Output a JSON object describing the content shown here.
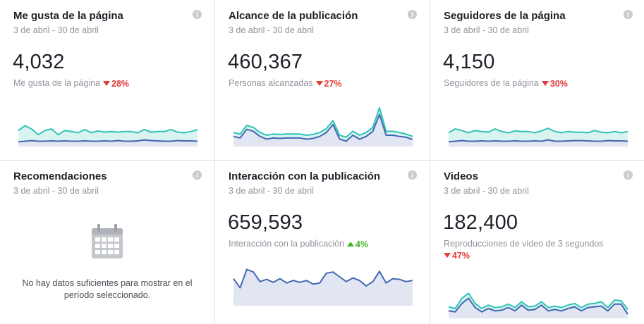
{
  "cards": [
    {
      "title": "Me gusta de la página",
      "range": "3 de abril - 30 de abril",
      "value": "4,032",
      "metric_label": "Me gusta de la página",
      "change": "28%",
      "trend": "down",
      "info_icon": "info-icon"
    },
    {
      "title": "Alcance de la publicación",
      "range": "3 de abril - 30 de abril",
      "value": "460,367",
      "metric_label": "Personas alcanzadas",
      "change": "27%",
      "trend": "down",
      "info_icon": "info-icon"
    },
    {
      "title": "Seguidores de la página",
      "range": "3 de abril - 30 de abril",
      "value": "4,150",
      "metric_label": "Seguidores de la página",
      "change": "30%",
      "trend": "down",
      "info_icon": "info-icon"
    },
    {
      "title": "Recomendaciones",
      "range": "3 de abril - 30 de abril",
      "empty_message": "No hay datos suficientes para mostrar en el período seleccionado.",
      "empty_icon": "calendar-icon",
      "info_icon": "info-icon"
    },
    {
      "title": "Interacción con la publicación",
      "range": "3 de abril - 30 de abril",
      "value": "659,593",
      "metric_label": "Interacción con la publicación",
      "change": "4%",
      "trend": "up",
      "info_icon": "info-icon"
    },
    {
      "title": "Videos",
      "range": "3 de abril - 30 de abril",
      "value": "182,400",
      "metric_label": "Reproducciones de video de 3 segundos",
      "change": "47%",
      "trend": "down",
      "info_icon": "info-icon"
    }
  ],
  "colors": {
    "teal": "#2ec4b6",
    "blue": "#4267b2",
    "teal_fill": "#d9f3f1",
    "blue_fill": "#e1e6f2",
    "down": "#e23d3a",
    "up": "#42b72a"
  },
  "sparklines": {
    "likes": {
      "teal": [
        0.55,
        0.4,
        0.5,
        0.68,
        0.55,
        0.5,
        0.68,
        0.55,
        0.58,
        0.62,
        0.52,
        0.62,
        0.56,
        0.6,
        0.58,
        0.6,
        0.58,
        0.58,
        0.62,
        0.52,
        0.6,
        0.58,
        0.58,
        0.52,
        0.6,
        0.62,
        0.58,
        0.52
      ],
      "blue": [
        0.9,
        0.88,
        0.86,
        0.88,
        0.88,
        0.87,
        0.88,
        0.87,
        0.88,
        0.88,
        0.87,
        0.88,
        0.88,
        0.87,
        0.88,
        0.86,
        0.88,
        0.88,
        0.87,
        0.84,
        0.86,
        0.87,
        0.88,
        0.88,
        0.86,
        0.87,
        0.87,
        0.88
      ]
    },
    "reach": {
      "teal": [
        0.68,
        0.72,
        0.5,
        0.55,
        0.68,
        0.75,
        0.72,
        0.73,
        0.72,
        0.72,
        0.72,
        0.75,
        0.73,
        0.68,
        0.58,
        0.38,
        0.75,
        0.8,
        0.65,
        0.75,
        0.68,
        0.55,
        0.05,
        0.65,
        0.65,
        0.68,
        0.72,
        0.78
      ],
      "blue": [
        0.78,
        0.82,
        0.6,
        0.65,
        0.78,
        0.85,
        0.82,
        0.83,
        0.82,
        0.82,
        0.82,
        0.85,
        0.83,
        0.78,
        0.68,
        0.48,
        0.85,
        0.9,
        0.75,
        0.85,
        0.78,
        0.65,
        0.22,
        0.75,
        0.75,
        0.78,
        0.8,
        0.86
      ]
    },
    "followers": {
      "teal": [
        0.62,
        0.5,
        0.55,
        0.62,
        0.55,
        0.58,
        0.6,
        0.5,
        0.58,
        0.62,
        0.56,
        0.58,
        0.58,
        0.62,
        0.56,
        0.48,
        0.58,
        0.62,
        0.58,
        0.6,
        0.6,
        0.62,
        0.55,
        0.6,
        0.62,
        0.58,
        0.62,
        0.58
      ],
      "blue": [
        0.9,
        0.88,
        0.86,
        0.88,
        0.88,
        0.87,
        0.88,
        0.87,
        0.88,
        0.88,
        0.87,
        0.88,
        0.88,
        0.87,
        0.88,
        0.84,
        0.88,
        0.88,
        0.87,
        0.86,
        0.86,
        0.87,
        0.88,
        0.88,
        0.86,
        0.87,
        0.87,
        0.88
      ]
    },
    "engagement": {
      "blue": [
        0.3,
        0.55,
        0.05,
        0.12,
        0.38,
        0.32,
        0.4,
        0.3,
        0.42,
        0.35,
        0.4,
        0.35,
        0.45,
        0.42,
        0.15,
        0.12,
        0.25,
        0.38,
        0.28,
        0.35,
        0.5,
        0.38,
        0.1,
        0.42,
        0.3,
        0.32,
        0.38,
        0.35
      ]
    },
    "videos": {
      "teal": [
        0.7,
        0.75,
        0.45,
        0.3,
        0.6,
        0.75,
        0.65,
        0.72,
        0.7,
        0.62,
        0.72,
        0.55,
        0.7,
        0.68,
        0.55,
        0.72,
        0.68,
        0.72,
        0.65,
        0.6,
        0.72,
        0.62,
        0.6,
        0.55,
        0.72,
        0.5,
        0.52,
        0.78
      ],
      "blue": [
        0.82,
        0.85,
        0.6,
        0.45,
        0.72,
        0.85,
        0.75,
        0.82,
        0.8,
        0.72,
        0.82,
        0.65,
        0.8,
        0.78,
        0.65,
        0.82,
        0.78,
        0.82,
        0.75,
        0.7,
        0.82,
        0.72,
        0.7,
        0.68,
        0.82,
        0.62,
        0.62,
        0.92
      ]
    }
  }
}
